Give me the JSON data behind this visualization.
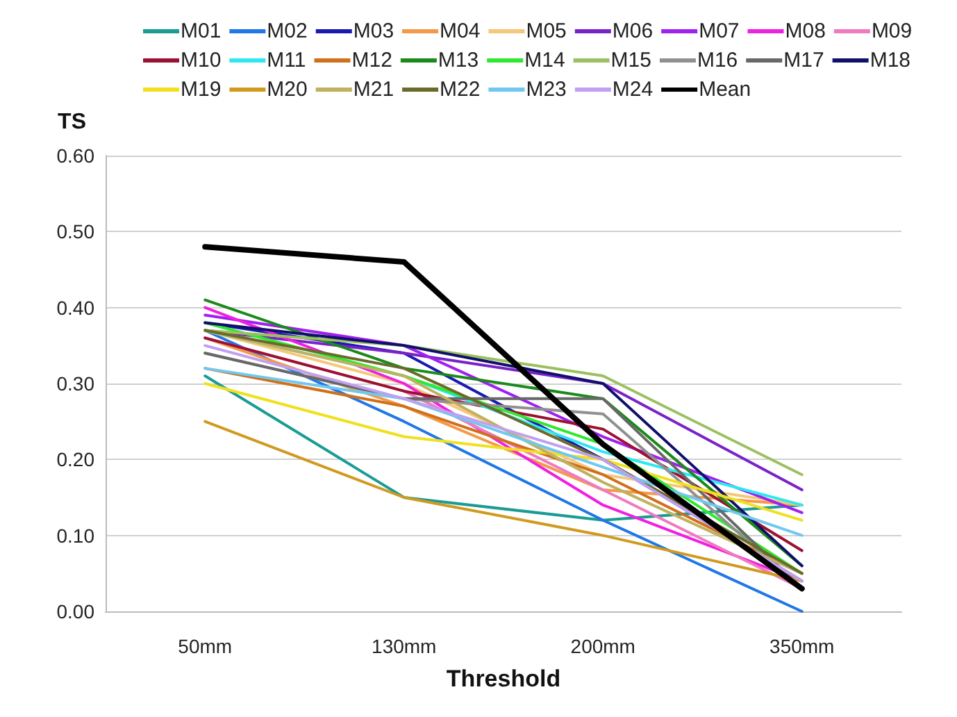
{
  "chart_data": {
    "type": "line",
    "xlabel": "Threshold",
    "ylabel": "TS",
    "categories": [
      "50mm",
      "130mm",
      "200mm",
      "350mm"
    ],
    "ylim": [
      0,
      0.6
    ],
    "yticks": [
      {
        "value": 0,
        "label": "0.00"
      },
      {
        "value": 0.1,
        "label": "0.10"
      },
      {
        "value": 0.2,
        "label": "0.20"
      },
      {
        "value": 0.3,
        "label": "0.30"
      },
      {
        "value": 0.4,
        "label": "0.40"
      },
      {
        "value": 0.5,
        "label": "0.50"
      },
      {
        "value": 0.6,
        "label": "0.60"
      }
    ],
    "grid": "y",
    "legend": "top",
    "marker": "none",
    "line_style": "solid",
    "series": [
      {
        "name": "M01",
        "color": "#1a9c95",
        "values": [
          0.31,
          0.15,
          0.12,
          0.14
        ]
      },
      {
        "name": "M02",
        "color": "#1f77e8",
        "values": [
          0.37,
          0.25,
          0.12,
          0.0
        ]
      },
      {
        "name": "M03",
        "color": "#1a1ab0",
        "values": [
          0.38,
          0.34,
          0.2,
          0.04
        ]
      },
      {
        "name": "M04",
        "color": "#f29a4a",
        "values": [
          0.36,
          0.27,
          0.16,
          0.14
        ]
      },
      {
        "name": "M05",
        "color": "#f5c77a",
        "values": [
          0.37,
          0.3,
          0.18,
          0.14
        ]
      },
      {
        "name": "M06",
        "color": "#7a22c8",
        "values": [
          0.37,
          0.34,
          0.3,
          0.16
        ]
      },
      {
        "name": "M07",
        "color": "#a020f0",
        "values": [
          0.39,
          0.35,
          0.23,
          0.13
        ]
      },
      {
        "name": "M08",
        "color": "#f020e0",
        "values": [
          0.4,
          0.3,
          0.14,
          0.04
        ]
      },
      {
        "name": "M09",
        "color": "#f07ac0",
        "values": [
          0.36,
          0.29,
          0.16,
          0.03
        ]
      },
      {
        "name": "M10",
        "color": "#9c1030",
        "values": [
          0.36,
          0.29,
          0.24,
          0.08
        ]
      },
      {
        "name": "M11",
        "color": "#2ee8f0",
        "values": [
          0.37,
          0.31,
          0.21,
          0.14
        ]
      },
      {
        "name": "M12",
        "color": "#d0701a",
        "values": [
          0.32,
          0.27,
          0.18,
          0.05
        ]
      },
      {
        "name": "M13",
        "color": "#1a8a1a",
        "values": [
          0.41,
          0.32,
          0.28,
          0.06
        ]
      },
      {
        "name": "M14",
        "color": "#30e830",
        "values": [
          0.38,
          0.31,
          0.22,
          0.05
        ]
      },
      {
        "name": "M15",
        "color": "#9cc060",
        "values": [
          0.37,
          0.35,
          0.31,
          0.18
        ]
      },
      {
        "name": "M16",
        "color": "#909090",
        "values": [
          0.34,
          0.28,
          0.26,
          0.03
        ]
      },
      {
        "name": "M17",
        "color": "#686868",
        "values": [
          0.34,
          0.28,
          0.28,
          0.03
        ]
      },
      {
        "name": "M18",
        "color": "#10106a",
        "values": [
          0.38,
          0.35,
          0.3,
          0.06
        ]
      },
      {
        "name": "M19",
        "color": "#f0e020",
        "values": [
          0.3,
          0.23,
          0.2,
          0.12
        ]
      },
      {
        "name": "M20",
        "color": "#d09a20",
        "values": [
          0.25,
          0.15,
          0.1,
          0.04
        ]
      },
      {
        "name": "M21",
        "color": "#c0b060",
        "values": [
          0.37,
          0.31,
          0.17,
          0.05
        ]
      },
      {
        "name": "M22",
        "color": "#6a6a2a",
        "values": [
          0.37,
          0.32,
          0.2,
          0.05
        ]
      },
      {
        "name": "M23",
        "color": "#70c8f0",
        "values": [
          0.32,
          0.28,
          0.19,
          0.1
        ]
      },
      {
        "name": "M24",
        "color": "#c0a0f0",
        "values": [
          0.35,
          0.28,
          0.2,
          0.04
        ]
      },
      {
        "name": "Mean",
        "color": "#000000",
        "values": [
          0.48,
          0.46,
          0.22,
          0.03
        ]
      }
    ]
  }
}
